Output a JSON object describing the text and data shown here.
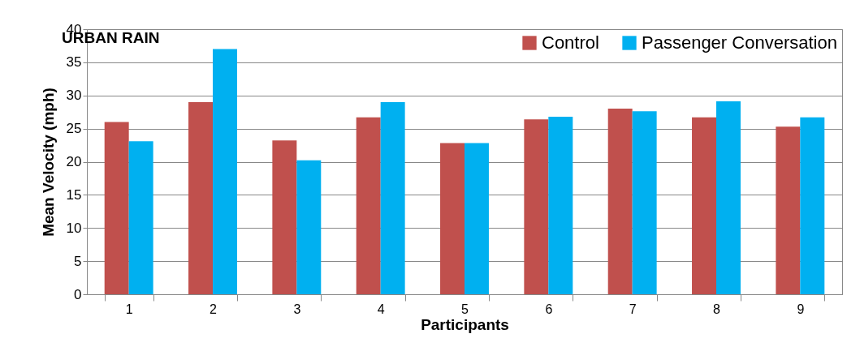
{
  "chart_data": {
    "type": "bar",
    "title": "URBAN RAIN",
    "xlabel": "Participants",
    "ylabel": "Mean Velocity (mph)",
    "categories": [
      "1",
      "2",
      "3",
      "4",
      "5",
      "6",
      "7",
      "8",
      "9"
    ],
    "series": [
      {
        "name": "Control",
        "color": "#c0504d",
        "values": [
          26.0,
          29.0,
          23.2,
          26.7,
          22.8,
          26.4,
          28.0,
          26.7,
          25.3
        ]
      },
      {
        "name": "Passenger Conversation",
        "color": "#00b0f0",
        "values": [
          23.1,
          37.0,
          20.2,
          29.0,
          22.8,
          26.8,
          27.6,
          29.1,
          26.7
        ]
      }
    ],
    "ylim": [
      0,
      40
    ],
    "yticks": [
      0,
      5,
      10,
      15,
      20,
      25,
      30,
      35,
      40
    ],
    "grid": "y",
    "legend": "top right"
  }
}
